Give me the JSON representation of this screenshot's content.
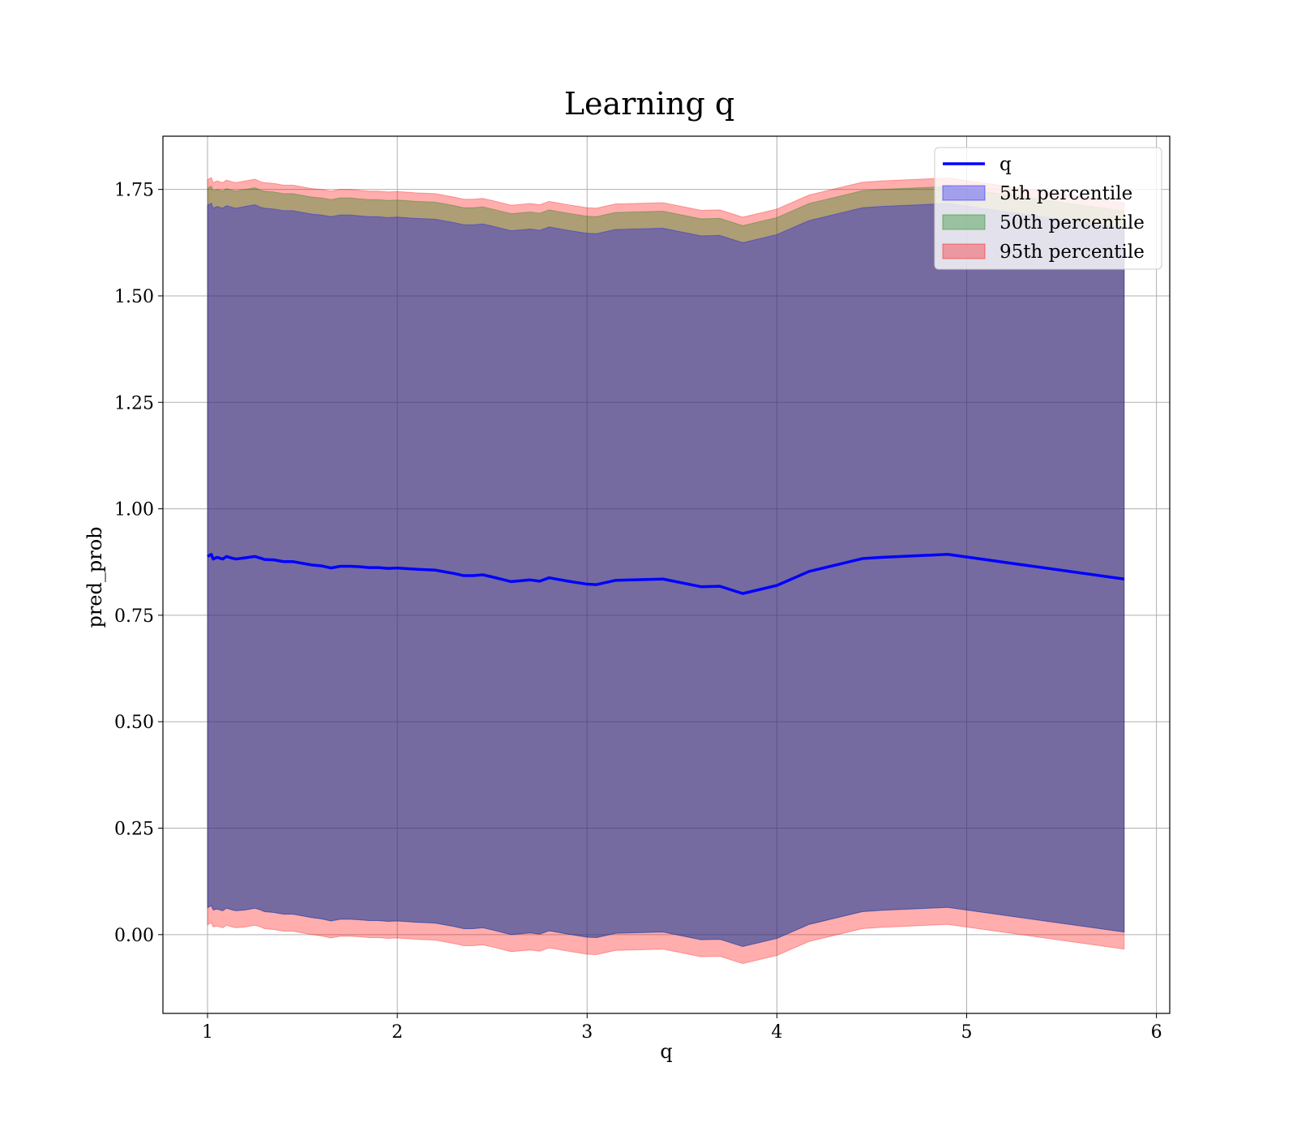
{
  "chart_data": {
    "type": "area",
    "title": "Learning q",
    "xlabel": "q",
    "ylabel": "pred_prob",
    "xlim": [
      0.765,
      6.07
    ],
    "ylim": [
      -0.185,
      1.875
    ],
    "x_ticks": [
      1,
      2,
      3,
      4,
      5,
      6
    ],
    "x_tick_labels": [
      "1",
      "2",
      "3",
      "4",
      "5",
      "6"
    ],
    "y_ticks": [
      0.0,
      0.25,
      0.5,
      0.75,
      1.0,
      1.25,
      1.5,
      1.75
    ],
    "y_tick_labels": [
      "0.00",
      "0.25",
      "0.50",
      "0.75",
      "1.00",
      "1.25",
      "1.50",
      "1.75"
    ],
    "grid": true,
    "legend_position": "top-right",
    "legend": [
      "q",
      "5th percentile",
      "50th percentile",
      "95th percentile"
    ],
    "colors": {
      "line": "#0000ff",
      "p5": "#0000ff",
      "p50": "#008000",
      "p95": "#ff0000",
      "grid": "#b0b0b0"
    },
    "x": [
      1.0,
      1.02,
      1.03,
      1.05,
      1.08,
      1.1,
      1.13,
      1.15,
      1.2,
      1.25,
      1.28,
      1.3,
      1.35,
      1.4,
      1.45,
      1.5,
      1.55,
      1.6,
      1.65,
      1.7,
      1.75,
      1.8,
      1.85,
      1.9,
      1.95,
      2.0,
      2.1,
      2.2,
      2.3,
      2.35,
      2.4,
      2.45,
      2.5,
      2.6,
      2.7,
      2.75,
      2.8,
      2.9,
      3.0,
      3.05,
      3.15,
      3.4,
      3.6,
      3.7,
      3.82,
      4.0,
      4.17,
      4.45,
      4.55,
      4.9,
      5.83
    ],
    "series": [
      {
        "name": "q",
        "values": [
          0.888,
          0.893,
          0.882,
          0.886,
          0.882,
          0.888,
          0.884,
          0.882,
          0.885,
          0.888,
          0.884,
          0.881,
          0.88,
          0.876,
          0.876,
          0.872,
          0.868,
          0.866,
          0.861,
          0.865,
          0.865,
          0.864,
          0.862,
          0.862,
          0.86,
          0.861,
          0.858,
          0.856,
          0.848,
          0.843,
          0.843,
          0.845,
          0.84,
          0.829,
          0.833,
          0.83,
          0.838,
          0.83,
          0.823,
          0.822,
          0.832,
          0.835,
          0.817,
          0.818,
          0.801,
          0.82,
          0.853,
          0.883,
          0.886,
          0.893,
          0.835
        ]
      },
      {
        "name": "5th percentile",
        "lower": [
          0.063,
          0.068,
          0.058,
          0.06,
          0.056,
          0.062,
          0.058,
          0.056,
          0.058,
          0.062,
          0.058,
          0.054,
          0.052,
          0.048,
          0.048,
          0.044,
          0.04,
          0.037,
          0.032,
          0.036,
          0.036,
          0.035,
          0.033,
          0.033,
          0.031,
          0.032,
          0.029,
          0.027,
          0.019,
          0.014,
          0.014,
          0.016,
          0.011,
          0.0,
          0.004,
          0.001,
          0.009,
          0.001,
          -0.006,
          -0.007,
          0.003,
          0.006,
          -0.012,
          -0.011,
          -0.028,
          -0.009,
          0.024,
          0.054,
          0.057,
          0.064,
          0.006
        ],
        "upper": [
          1.713,
          1.718,
          1.706,
          1.71,
          1.706,
          1.712,
          1.708,
          1.706,
          1.71,
          1.714,
          1.708,
          1.706,
          1.704,
          1.7,
          1.7,
          1.696,
          1.692,
          1.69,
          1.686,
          1.69,
          1.69,
          1.688,
          1.686,
          1.686,
          1.684,
          1.685,
          1.682,
          1.68,
          1.672,
          1.667,
          1.667,
          1.669,
          1.664,
          1.653,
          1.657,
          1.654,
          1.662,
          1.654,
          1.647,
          1.646,
          1.656,
          1.659,
          1.641,
          1.642,
          1.625,
          1.644,
          1.677,
          1.707,
          1.71,
          1.717,
          1.659
        ]
      },
      {
        "name": "50th percentile",
        "lower": [
          0.063,
          0.068,
          0.058,
          0.06,
          0.056,
          0.062,
          0.058,
          0.056,
          0.058,
          0.062,
          0.058,
          0.054,
          0.052,
          0.048,
          0.048,
          0.044,
          0.04,
          0.037,
          0.032,
          0.036,
          0.036,
          0.035,
          0.033,
          0.033,
          0.031,
          0.032,
          0.029,
          0.027,
          0.019,
          0.014,
          0.014,
          0.016,
          0.011,
          0.0,
          0.004,
          0.001,
          0.009,
          0.001,
          -0.006,
          -0.007,
          0.003,
          0.006,
          -0.012,
          -0.011,
          -0.028,
          -0.009,
          0.024,
          0.054,
          0.057,
          0.064,
          0.006
        ],
        "upper": [
          1.753,
          1.758,
          1.746,
          1.75,
          1.746,
          1.752,
          1.748,
          1.746,
          1.75,
          1.754,
          1.748,
          1.746,
          1.744,
          1.74,
          1.74,
          1.736,
          1.732,
          1.73,
          1.726,
          1.73,
          1.73,
          1.728,
          1.726,
          1.726,
          1.724,
          1.725,
          1.722,
          1.72,
          1.712,
          1.707,
          1.707,
          1.709,
          1.704,
          1.693,
          1.697,
          1.694,
          1.702,
          1.694,
          1.687,
          1.686,
          1.696,
          1.699,
          1.681,
          1.682,
          1.665,
          1.684,
          1.717,
          1.747,
          1.75,
          1.757,
          1.699
        ]
      },
      {
        "name": "95th percentile",
        "lower": [
          0.023,
          0.028,
          0.018,
          0.02,
          0.016,
          0.022,
          0.018,
          0.016,
          0.018,
          0.022,
          0.018,
          0.014,
          0.012,
          0.008,
          0.008,
          0.004,
          0.0,
          -0.003,
          -0.008,
          -0.004,
          -0.004,
          -0.005,
          -0.007,
          -0.007,
          -0.009,
          -0.008,
          -0.011,
          -0.013,
          -0.021,
          -0.026,
          -0.026,
          -0.024,
          -0.029,
          -0.04,
          -0.036,
          -0.039,
          -0.031,
          -0.039,
          -0.046,
          -0.047,
          -0.037,
          -0.034,
          -0.052,
          -0.051,
          -0.068,
          -0.049,
          -0.016,
          0.014,
          0.017,
          0.024,
          -0.034
        ],
        "upper": [
          1.773,
          1.778,
          1.766,
          1.77,
          1.766,
          1.772,
          1.768,
          1.766,
          1.77,
          1.774,
          1.768,
          1.766,
          1.764,
          1.76,
          1.76,
          1.756,
          1.752,
          1.75,
          1.746,
          1.75,
          1.75,
          1.748,
          1.746,
          1.746,
          1.744,
          1.745,
          1.742,
          1.74,
          1.732,
          1.727,
          1.727,
          1.729,
          1.724,
          1.713,
          1.717,
          1.714,
          1.722,
          1.714,
          1.707,
          1.706,
          1.716,
          1.719,
          1.701,
          1.702,
          1.685,
          1.704,
          1.737,
          1.767,
          1.77,
          1.777,
          1.719
        ]
      }
    ]
  }
}
